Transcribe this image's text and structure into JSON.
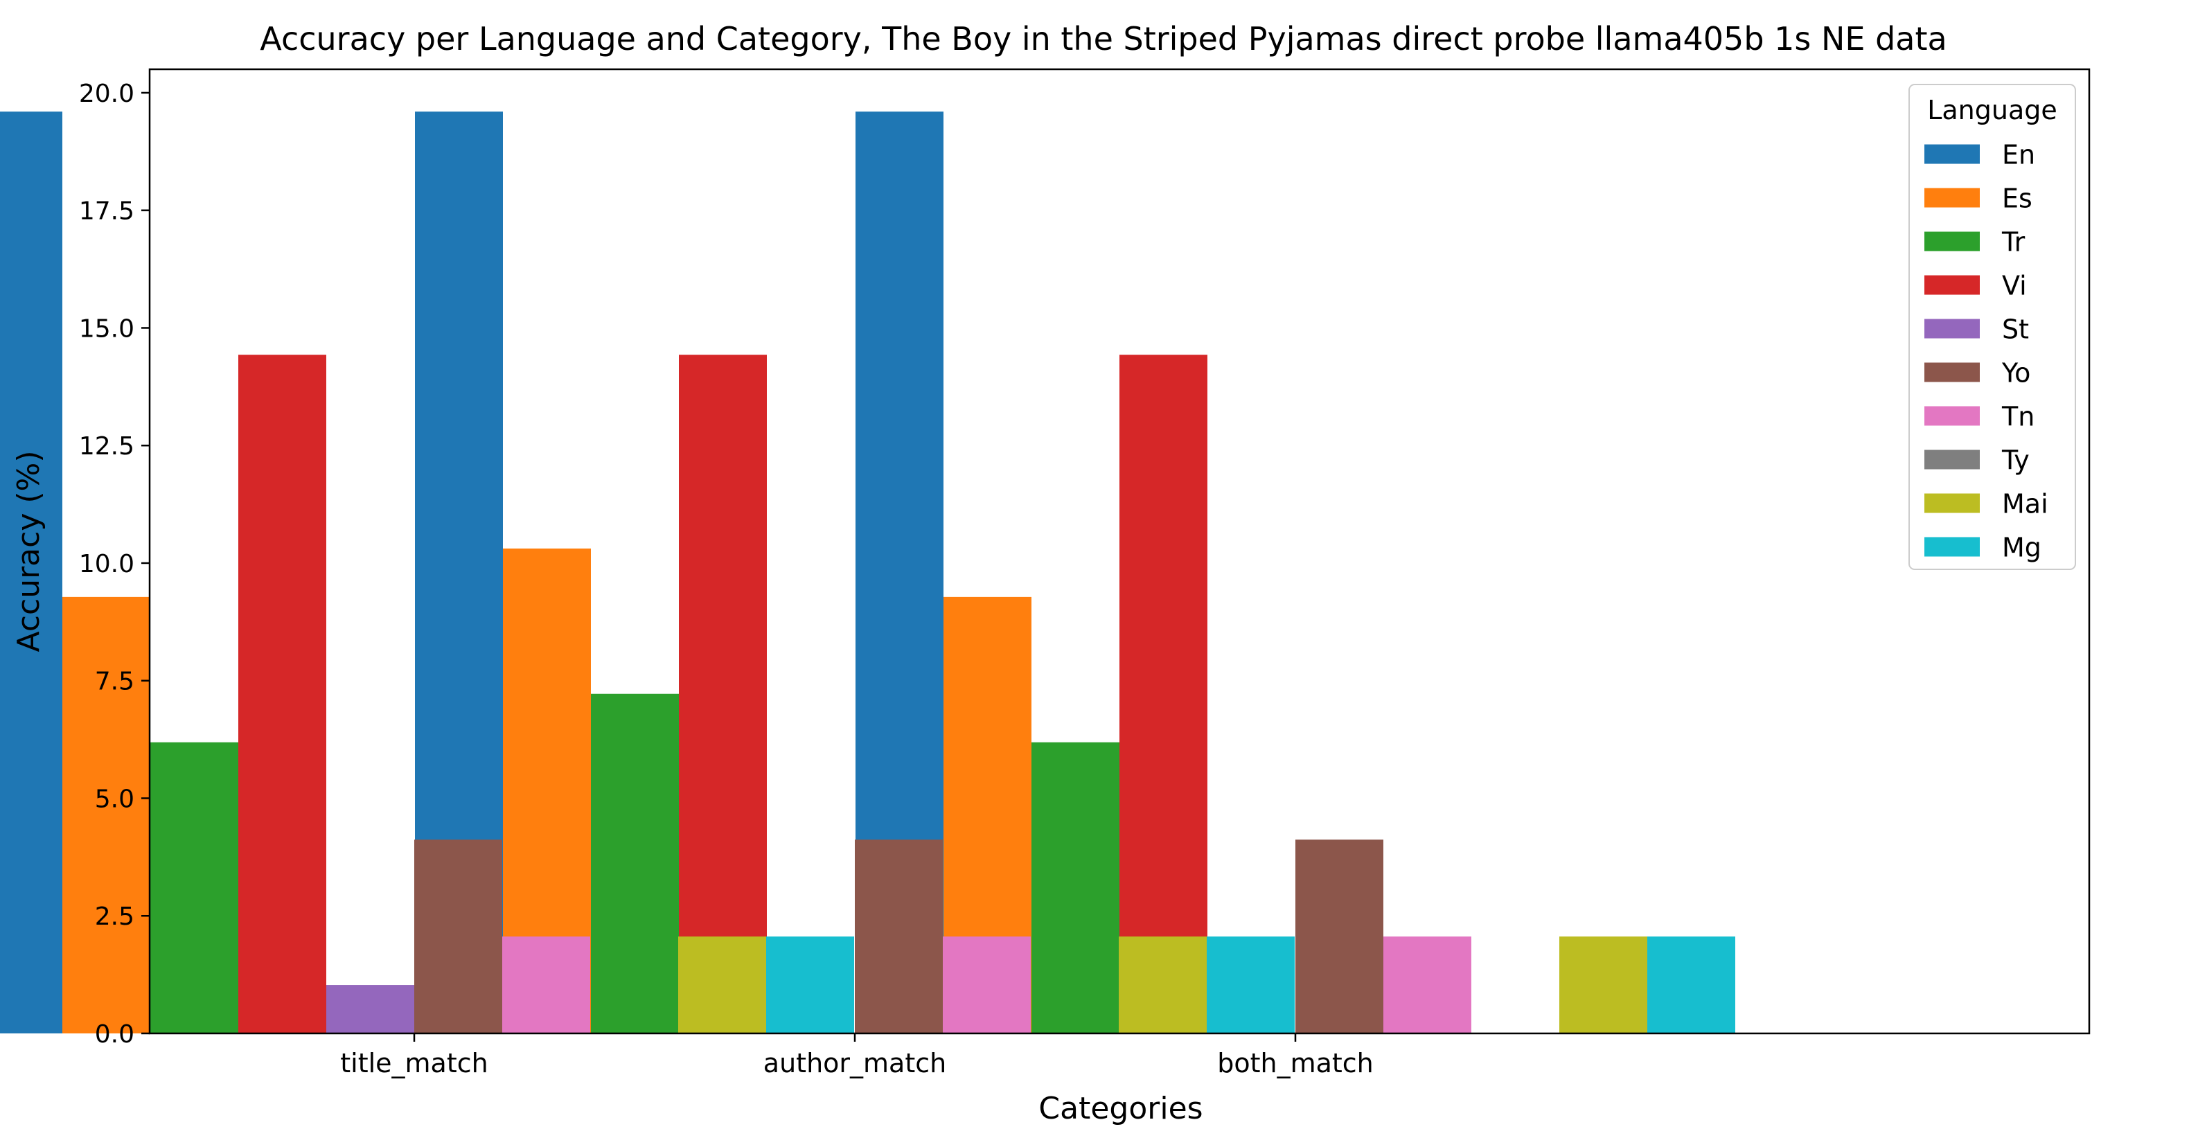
{
  "chart_data": {
    "type": "bar",
    "title": "Accuracy per Language and Category, The Boy in the Striped Pyjamas direct probe llama405b 1s NE data",
    "xlabel": "Categories",
    "ylabel": "Accuracy (%)",
    "categories": [
      "title_match",
      "author_match",
      "both_match"
    ],
    "ylim": [
      0,
      20.5
    ],
    "yticks": [
      "0.0",
      "2.5",
      "5.0",
      "7.5",
      "10.0",
      "12.5",
      "15.0",
      "17.5",
      "20.0"
    ],
    "legend": {
      "title": "Language",
      "placement": "top-right"
    },
    "series": [
      {
        "name": "En",
        "color": "#1f77b4",
        "values": [
          19.6,
          19.6,
          19.6
        ]
      },
      {
        "name": "Es",
        "color": "#ff7f0e",
        "values": [
          9.28,
          10.31,
          9.28
        ]
      },
      {
        "name": "Tr",
        "color": "#2ca02c",
        "values": [
          6.19,
          7.22,
          6.19
        ]
      },
      {
        "name": "Vi",
        "color": "#d62728",
        "values": [
          14.43,
          14.43,
          14.43
        ]
      },
      {
        "name": "St",
        "color": "#9467bd",
        "values": [
          1.03,
          0.0,
          0.0
        ]
      },
      {
        "name": "Yo",
        "color": "#8c564b",
        "values": [
          4.12,
          4.12,
          4.12
        ]
      },
      {
        "name": "Tn",
        "color": "#e377c2",
        "values": [
          2.06,
          2.06,
          2.06
        ]
      },
      {
        "name": "Ty",
        "color": "#7f7f7f",
        "values": [
          0.0,
          0.0,
          0.0
        ]
      },
      {
        "name": "Mai",
        "color": "#bcbd22",
        "values": [
          2.06,
          2.06,
          2.06
        ]
      },
      {
        "name": "Mg",
        "color": "#17becf",
        "values": [
          2.06,
          2.06,
          2.06
        ]
      }
    ]
  }
}
